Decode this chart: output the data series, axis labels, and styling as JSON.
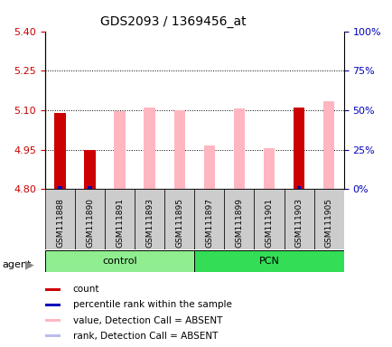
{
  "title": "GDS2093 / 1369456_at",
  "samples": [
    "GSM111888",
    "GSM111890",
    "GSM111891",
    "GSM111893",
    "GSM111895",
    "GSM111897",
    "GSM111899",
    "GSM111901",
    "GSM111903",
    "GSM111905"
  ],
  "groups": [
    {
      "label": "control",
      "start": 0,
      "end": 5,
      "color": "#90EE90"
    },
    {
      "label": "PCN",
      "start": 5,
      "end": 10,
      "color": "#33DD55"
    }
  ],
  "ylim_left": [
    4.8,
    5.4
  ],
  "ylim_right": [
    0,
    100
  ],
  "yticks_left": [
    4.8,
    4.95,
    5.1,
    5.25,
    5.4
  ],
  "yticks_right": [
    0,
    25,
    50,
    75,
    100
  ],
  "grid_values": [
    4.95,
    5.1,
    5.25
  ],
  "bar_base": 4.8,
  "red_values": [
    5.09,
    4.95,
    null,
    null,
    null,
    null,
    null,
    null,
    5.11,
    null
  ],
  "blue_pct": [
    2.0,
    2.0,
    null,
    null,
    null,
    null,
    null,
    null,
    2.0,
    null
  ],
  "pink_values": [
    null,
    null,
    5.095,
    5.11,
    5.1,
    4.965,
    5.105,
    4.955,
    null,
    5.135
  ],
  "lav_pct": [
    1.5,
    1.5,
    1.5,
    1.5,
    1.5,
    1.5,
    1.5,
    1.5,
    1.5,
    1.5
  ],
  "red_color": "#CC0000",
  "blue_color": "#0000BB",
  "pink_color": "#FFB6C1",
  "lav_color": "#BBBBEE",
  "left_tick_color": "#CC0000",
  "right_tick_color": "#0000BB",
  "title_fontsize": 10,
  "legend_fontsize": 7.5,
  "tick_fontsize": 8,
  "sample_fontsize": 6.5,
  "group_fontsize": 8
}
